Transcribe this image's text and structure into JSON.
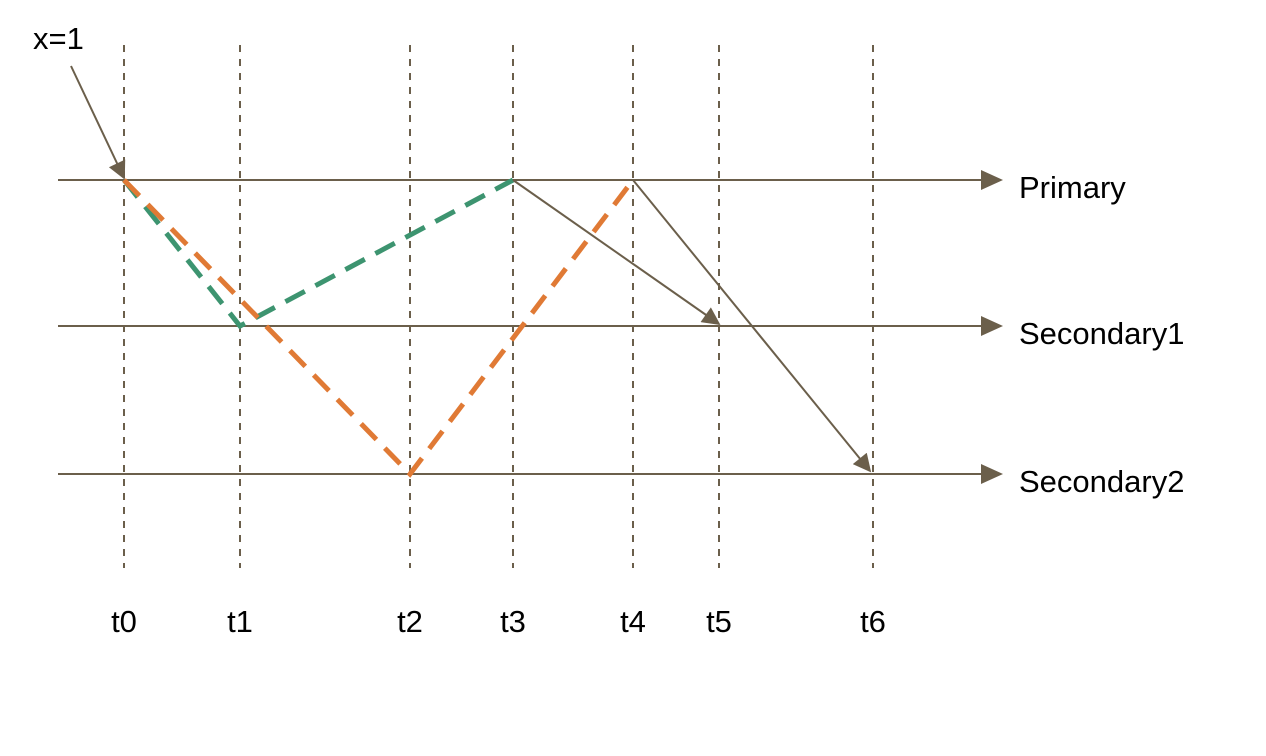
{
  "diagram": {
    "write_label": "x=1",
    "nodes": [
      {
        "id": "primary",
        "label": "Primary"
      },
      {
        "id": "secondary1",
        "label": "Secondary1"
      },
      {
        "id": "secondary2",
        "label": "Secondary2"
      }
    ],
    "times": [
      "t0",
      "t1",
      "t2",
      "t3",
      "t4",
      "t5",
      "t6"
    ],
    "messages": [
      {
        "from": "write",
        "to": "primary",
        "at": "t0",
        "style": "solid"
      },
      {
        "from": "primary",
        "from_time": "t0",
        "to": "secondary1",
        "to_time": "t1",
        "style": "dashed-green"
      },
      {
        "from": "secondary1",
        "from_time": "t1",
        "to": "primary",
        "to_time": "t3",
        "style": "dashed-green"
      },
      {
        "from": "primary",
        "from_time": "t0",
        "to": "secondary2",
        "to_time": "t2",
        "style": "dashed-orange"
      },
      {
        "from": "secondary2",
        "from_time": "t2",
        "to": "primary",
        "to_time": "t4",
        "style": "dashed-orange"
      },
      {
        "from": "primary",
        "from_time": "t3",
        "to": "secondary1",
        "to_time": "t5",
        "style": "solid"
      },
      {
        "from": "primary",
        "from_time": "t4",
        "to": "secondary2",
        "to_time": "t6",
        "style": "solid"
      }
    ],
    "colors": {
      "line": "#6b5f4b",
      "green": "#3d9470",
      "orange": "#e07a35",
      "text": "#000000"
    }
  }
}
